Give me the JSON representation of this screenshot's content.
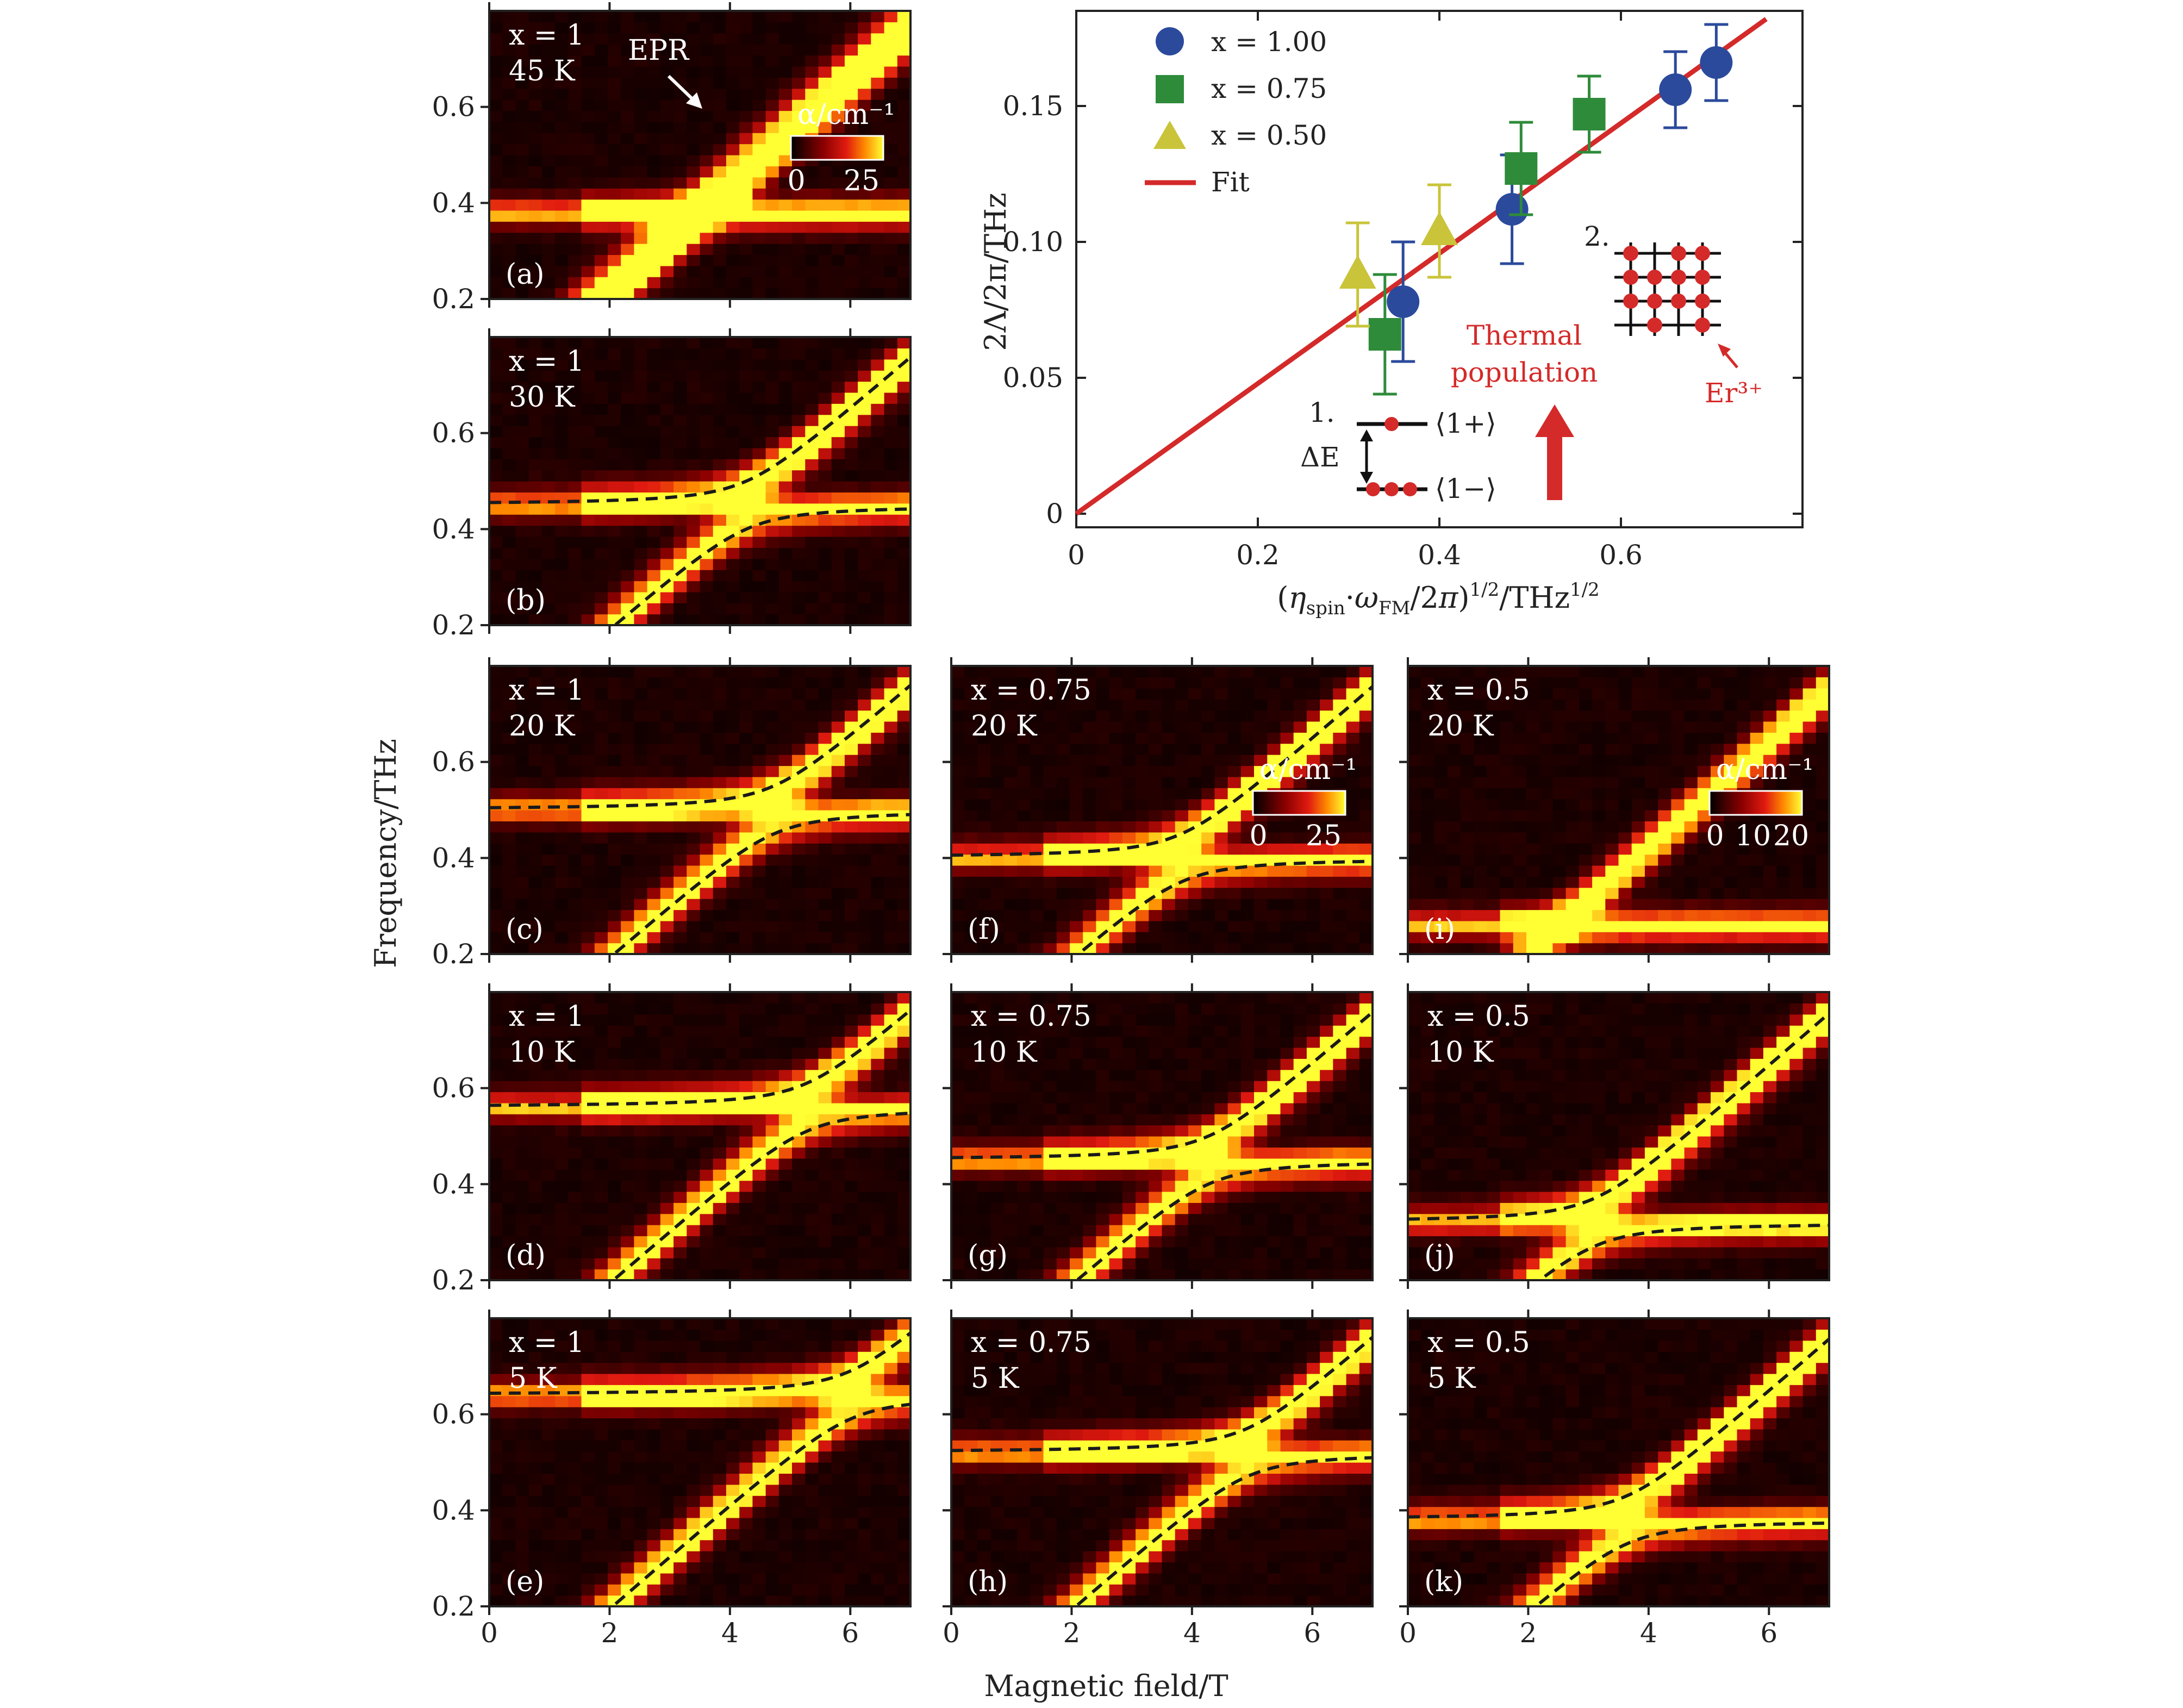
{
  "chart_data": [
    {
      "type": "heatmap",
      "panels": [
        {
          "id": "a",
          "label": "(a)",
          "x_text": "x = 1",
          "temp": "45 K",
          "row": 0,
          "col": 0,
          "f0": 0.38,
          "f_cross_field": null,
          "dashed": false,
          "epr_label": "EPR",
          "colorbar": {
            "label": "α/cm⁻¹",
            "ticks": [
              "0",
              "25"
            ]
          }
        },
        {
          "id": "b",
          "label": "(b)",
          "x_text": "x = 1",
          "temp": "30 K",
          "row": 1,
          "col": 0,
          "f0": 0.45,
          "dashed": true
        },
        {
          "id": "c",
          "label": "(c)",
          "x_text": "x = 1",
          "temp": "20 K",
          "row": 2,
          "col": 0,
          "f0": 0.5,
          "dashed": true
        },
        {
          "id": "d",
          "label": "(d)",
          "x_text": "x = 1",
          "temp": "10 K",
          "row": 3,
          "col": 0,
          "f0": 0.56,
          "dashed": true
        },
        {
          "id": "e",
          "label": "(e)",
          "x_text": "x = 1",
          "temp": "5 K",
          "row": 4,
          "col": 0,
          "f0": 0.64,
          "dashed": true
        },
        {
          "id": "f",
          "label": "(f)",
          "x_text": "x = 0.75",
          "temp": "20 K",
          "row": 2,
          "col": 1,
          "f0": 0.4,
          "dashed": true,
          "colorbar": {
            "label": "α/cm⁻¹",
            "ticks": [
              "0",
              "25"
            ]
          }
        },
        {
          "id": "g",
          "label": "(g)",
          "x_text": "x = 0.75",
          "temp": "10 K",
          "row": 3,
          "col": 1,
          "f0": 0.45,
          "dashed": true
        },
        {
          "id": "h",
          "label": "(h)",
          "x_text": "x = 0.75",
          "temp": "5 K",
          "row": 4,
          "col": 1,
          "f0": 0.52,
          "dashed": true
        },
        {
          "id": "i",
          "label": "(i)",
          "x_text": "x = 0.5",
          "temp": "20 K",
          "row": 2,
          "col": 2,
          "f0": 0.26,
          "dashed": false,
          "colorbar": {
            "label": "α/cm⁻¹",
            "ticks": [
              "0",
              "10",
              "20"
            ]
          }
        },
        {
          "id": "j",
          "label": "(j)",
          "x_text": "x = 0.5",
          "temp": "10 K",
          "row": 3,
          "col": 2,
          "f0": 0.32,
          "dashed": true
        },
        {
          "id": "k",
          "label": "(k)",
          "x_text": "x = 0.5",
          "temp": "5 K",
          "row": 4,
          "col": 2,
          "f0": 0.38,
          "dashed": true
        }
      ],
      "xlim": [
        0,
        7
      ],
      "ylim": [
        0.2,
        0.8
      ],
      "xticks": [
        "0",
        "2",
        "4",
        "6"
      ],
      "yticks": [
        "0.2",
        "0.4",
        "0.6"
      ],
      "xlabel": "Magnetic field/T",
      "ylabel": "Frequency/THz"
    },
    {
      "type": "scatter",
      "xlabel": "(η_spin·ω_FM/2π)^1/2/THz^1/2",
      "ylabel": "2Λ/2π/THz",
      "xlim": [
        0,
        0.8
      ],
      "ylim": [
        -0.005,
        0.185
      ],
      "xticks": [
        "0",
        "0.2",
        "0.4",
        "0.6"
      ],
      "yticks": [
        "0",
        "0.05",
        "0.10",
        "0.15"
      ],
      "series": [
        {
          "name": "x = 1.00",
          "marker": "circle",
          "color": "#2b4a9c",
          "points": [
            {
              "x": 0.36,
              "y": 0.078,
              "err": 0.022
            },
            {
              "x": 0.48,
              "y": 0.112,
              "err": 0.02
            },
            {
              "x": 0.66,
              "y": 0.156,
              "err": 0.014
            },
            {
              "x": 0.705,
              "y": 0.166,
              "err": 0.014
            }
          ]
        },
        {
          "name": "x = 0.75",
          "marker": "square",
          "color": "#2e8b3a",
          "points": [
            {
              "x": 0.34,
              "y": 0.066,
              "err": 0.022
            },
            {
              "x": 0.49,
              "y": 0.127,
              "err": 0.017
            },
            {
              "x": 0.565,
              "y": 0.147,
              "err": 0.014
            }
          ]
        },
        {
          "name": "x = 0.50",
          "marker": "triangle",
          "color": "#c9c43a",
          "points": [
            {
              "x": 0.31,
              "y": 0.088,
              "err": 0.019
            },
            {
              "x": 0.4,
              "y": 0.104,
              "err": 0.017
            }
          ]
        },
        {
          "name": "Fit",
          "marker": "line",
          "color": "#d42a2a",
          "line": {
            "x0": 0,
            "y0": 0,
            "x1": 0.76,
            "y1": 0.182
          }
        }
      ],
      "annotations": {
        "thermal": [
          "Thermal",
          "population"
        ],
        "level_up": "⟨1+⟩",
        "level_down": "⟨1−⟩",
        "delta_e": "ΔE",
        "step1": "1.",
        "step2": "2.",
        "er_label": "Er³⁺"
      }
    }
  ]
}
